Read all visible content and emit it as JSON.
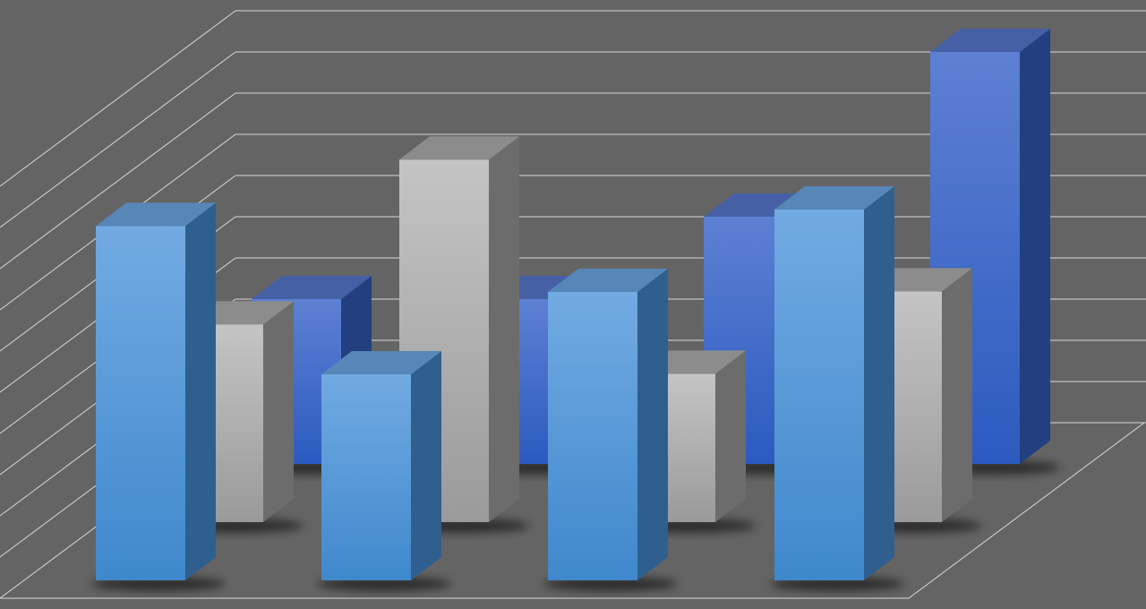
{
  "chart_data": {
    "type": "bar",
    "style": "3d-clustered-depth",
    "title": "",
    "xlabel": "",
    "ylabel": "",
    "categories": [
      "",
      "",
      "",
      ""
    ],
    "ylim": [
      0,
      10
    ],
    "grid": true,
    "legend": "none",
    "series": [
      {
        "row": "front",
        "color": "#5a9ad8",
        "values": [
          8.6,
          5.0,
          7.0,
          9.0
        ]
      },
      {
        "row": "middle",
        "color": "#b0b0b0",
        "values": [
          4.8,
          8.8,
          3.6,
          5.6
        ]
      },
      {
        "row": "back",
        "color": "#3f68c8",
        "values": [
          4.0,
          4.0,
          6.0,
          10.0
        ]
      }
    ],
    "colors": {
      "background": "#646464",
      "grid": "#d8d8d8"
    }
  }
}
